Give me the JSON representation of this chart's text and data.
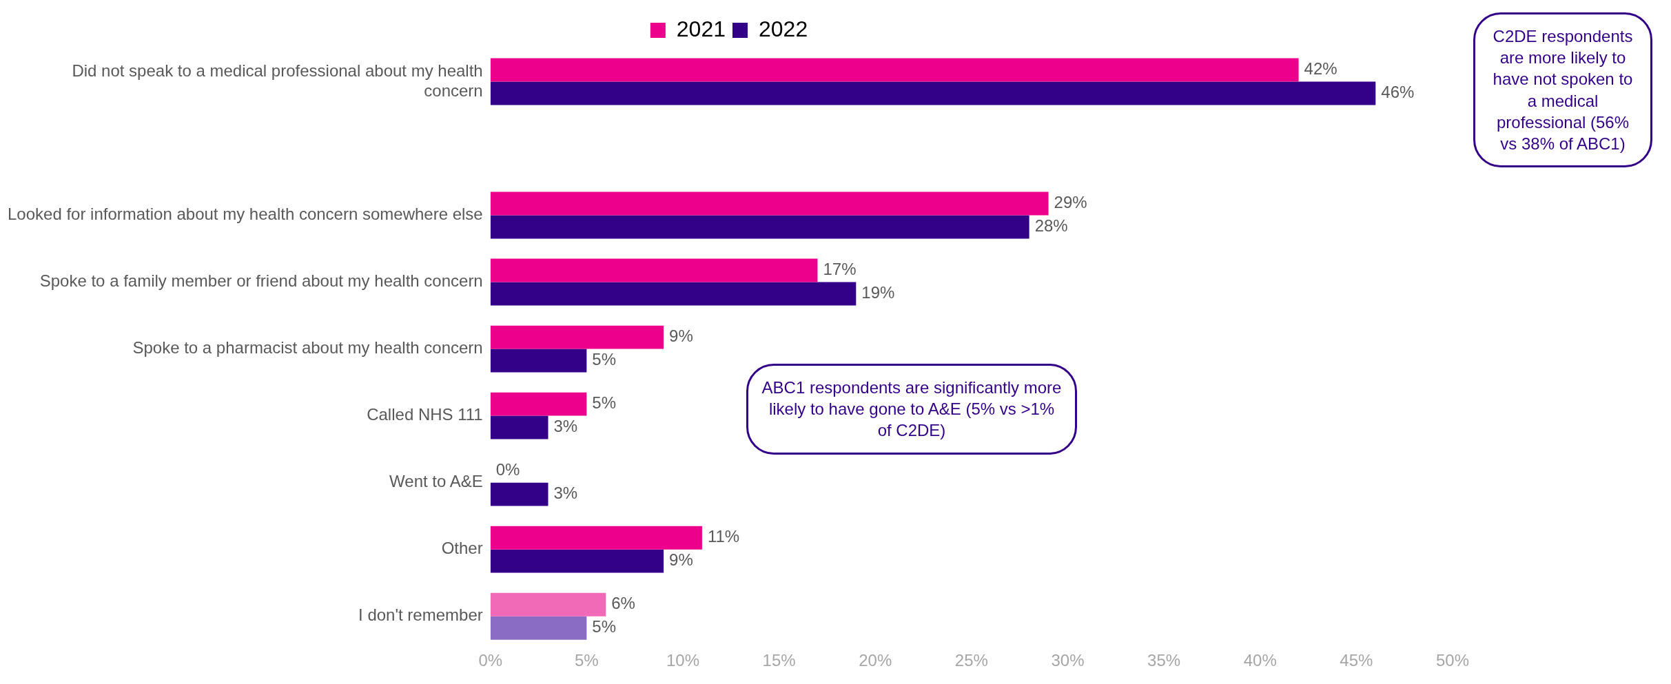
{
  "chart_data": {
    "type": "bar",
    "orientation": "horizontal",
    "categories": [
      "Did not speak to a medical professional about my health concern",
      null,
      "Looked for information about my health concern somewhere else",
      "Spoke to a family member or friend about my health concern",
      "Spoke to a pharmacist about my health concern",
      "Called NHS 111",
      "Went to A&E",
      "Other",
      "I don't remember"
    ],
    "series": [
      {
        "name": "2021",
        "color": "#ec008c",
        "colors": [
          "#ec008c",
          "#ec008c",
          "#ec008c",
          "#ec008c",
          "#ec008c",
          "#ec008c",
          "#ec008c",
          "#ec008c",
          "#f06ab8"
        ],
        "values": [
          42,
          null,
          29,
          17,
          9,
          5,
          0,
          11,
          6
        ],
        "value_labels": [
          "42%",
          null,
          "29%",
          "17%",
          "9%",
          "5%",
          "0%",
          "11%",
          "6%"
        ]
      },
      {
        "name": "2022",
        "color": "#330088",
        "colors": [
          "#330088",
          "#330088",
          "#330088",
          "#330088",
          "#330088",
          "#330088",
          "#330088",
          "#330088",
          "#8a6cc4"
        ],
        "values": [
          46,
          null,
          28,
          19,
          5,
          3,
          3,
          9,
          5
        ],
        "value_labels": [
          "46%",
          null,
          "28%",
          "19%",
          "5%",
          "3%",
          "3%",
          "9%",
          "5%"
        ]
      }
    ],
    "xlim": [
      0,
      50
    ],
    "xticks": [
      {
        "value": 0,
        "label": "0%"
      },
      {
        "value": 5,
        "label": "5%"
      },
      {
        "value": 10,
        "label": "10%"
      },
      {
        "value": 15,
        "label": "15%"
      },
      {
        "value": 20,
        "label": "20%"
      },
      {
        "value": 25,
        "label": "25%"
      },
      {
        "value": 30,
        "label": "30%"
      },
      {
        "value": 35,
        "label": "35%"
      },
      {
        "value": 40,
        "label": "40%"
      },
      {
        "value": 45,
        "label": "45%"
      },
      {
        "value": 50,
        "label": "50%"
      }
    ],
    "legend": "top",
    "grid": false,
    "annotations": [
      "C2DE respondents are more likely to have not spoken to a medical professional (56% vs 38% of ABC1)",
      "ABC1 respondents are significantly more likely to have gone to A&E (5% vs >1% of C2DE)"
    ]
  }
}
